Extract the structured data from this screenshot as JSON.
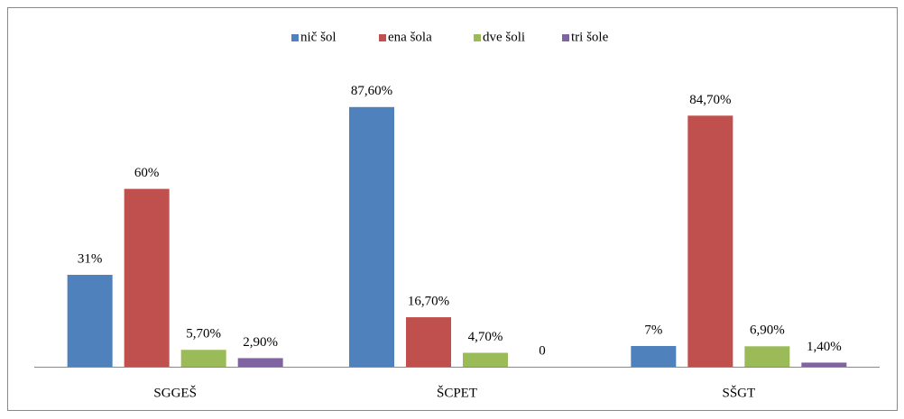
{
  "chart_data": {
    "type": "bar",
    "categories": [
      "SGGEŠ",
      "ŠCPET",
      "SŠGT"
    ],
    "series": [
      {
        "name": "nič šol",
        "color": "#4f81bd",
        "values": [
          31,
          87.6,
          7
        ],
        "value_labels": [
          "31%",
          "87,60%",
          "7%"
        ]
      },
      {
        "name": "ena šola",
        "color": "#c0504d",
        "values": [
          60,
          16.7,
          84.7
        ],
        "value_labels": [
          "60%",
          "16,70%",
          "84,70%"
        ]
      },
      {
        "name": "dve šoli",
        "color": "#9bbb59",
        "values": [
          5.7,
          4.7,
          6.9
        ],
        "value_labels": [
          "5,70%",
          "4,70%",
          "6,90%"
        ]
      },
      {
        "name": "tri šole",
        "color": "#8064a2",
        "values": [
          2.9,
          0,
          1.4
        ],
        "value_labels": [
          "2,90%",
          "0",
          "1,40%"
        ]
      }
    ],
    "legend": "top"
  }
}
